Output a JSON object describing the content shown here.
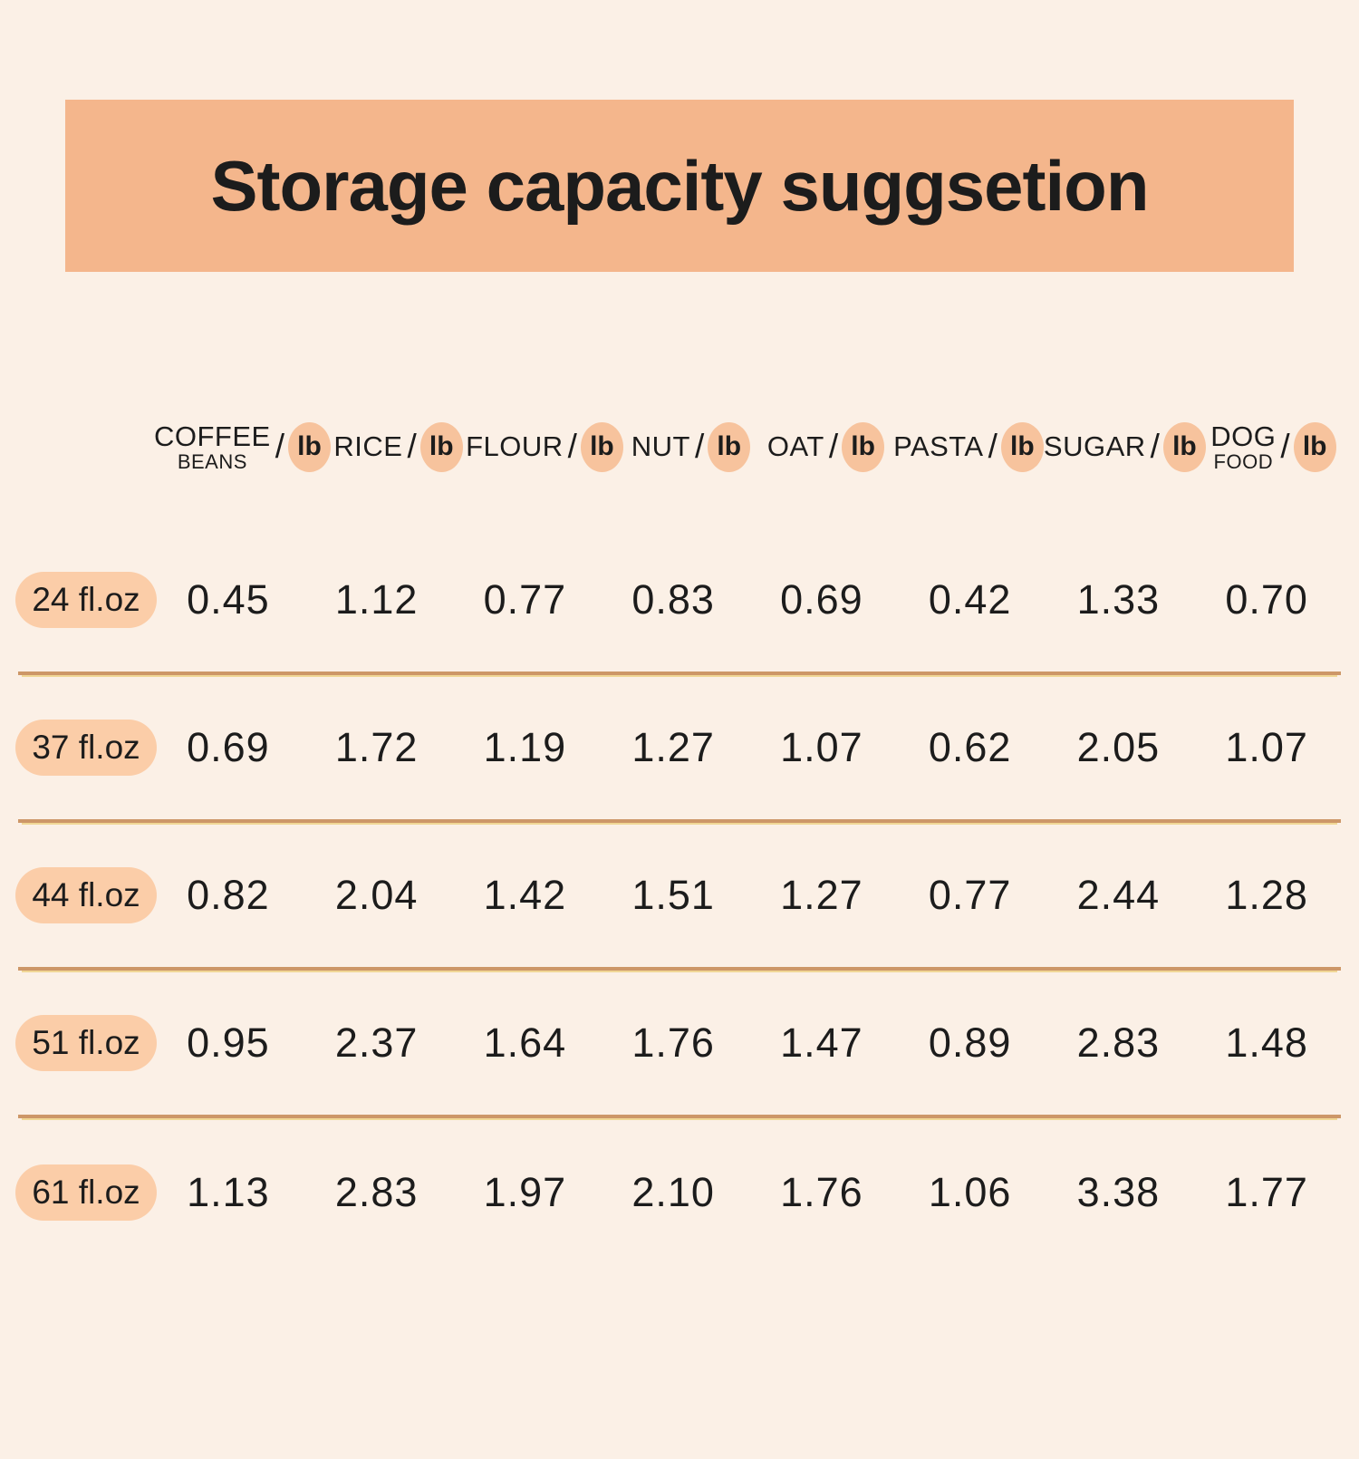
{
  "page": {
    "title": "Storage capacity suggsetion"
  },
  "table": {
    "unit": "lb",
    "separator": "/",
    "columns": [
      {
        "name": "COFFEE",
        "sub": "BEANS"
      },
      {
        "name": "RICE",
        "sub": ""
      },
      {
        "name": "FLOUR",
        "sub": ""
      },
      {
        "name": "NUT",
        "sub": ""
      },
      {
        "name": "OAT",
        "sub": ""
      },
      {
        "name": "PASTA",
        "sub": ""
      },
      {
        "name": "SUGAR",
        "sub": ""
      },
      {
        "name": "DOG",
        "sub": "FOOD"
      }
    ],
    "rows": [
      {
        "size": "24 fl.oz",
        "values": [
          "0.45",
          "1.12",
          "0.77",
          "0.83",
          "0.69",
          "0.42",
          "1.33",
          "0.70"
        ]
      },
      {
        "size": "37 fl.oz",
        "values": [
          "0.69",
          "1.72",
          "1.19",
          "1.27",
          "1.07",
          "0.62",
          "2.05",
          "1.07"
        ]
      },
      {
        "size": "44 fl.oz",
        "values": [
          "0.82",
          "2.04",
          "1.42",
          "1.51",
          "1.27",
          "0.77",
          "2.44",
          "1.28"
        ]
      },
      {
        "size": "51 fl.oz",
        "values": [
          "0.95",
          "2.37",
          "1.64",
          "1.76",
          "1.47",
          "0.89",
          "2.83",
          "1.48"
        ]
      },
      {
        "size": "61 fl.oz",
        "values": [
          "1.13",
          "2.83",
          "1.97",
          "2.10",
          "1.76",
          "1.06",
          "3.38",
          "1.77"
        ]
      }
    ]
  },
  "colors": {
    "background": "#fbf0e6",
    "banner": "#f4b68c",
    "pill": "#fbcda8",
    "unit_oval": "#f7c39d",
    "divider": "#cd9768",
    "divider_glow": "#f0d795",
    "text": "#1c1c1c"
  },
  "chart_data": {
    "type": "table",
    "title": "Storage capacity suggsetion",
    "columns": [
      "COFFEE BEANS/lb",
      "RICE/lb",
      "FLOUR/lb",
      "NUT/lb",
      "OAT/lb",
      "PASTA/lb",
      "SUGAR/lb",
      "DOG FOOD/lb"
    ],
    "row_labels": [
      "24 fl.oz",
      "37 fl.oz",
      "44 fl.oz",
      "51 fl.oz",
      "61 fl.oz"
    ],
    "values": [
      [
        0.45,
        1.12,
        0.77,
        0.83,
        0.69,
        0.42,
        1.33,
        0.7
      ],
      [
        0.69,
        1.72,
        1.19,
        1.27,
        1.07,
        0.62,
        2.05,
        1.07
      ],
      [
        0.82,
        2.04,
        1.42,
        1.51,
        1.27,
        0.77,
        2.44,
        1.28
      ],
      [
        0.95,
        2.37,
        1.64,
        1.76,
        1.47,
        0.89,
        2.83,
        1.48
      ],
      [
        1.13,
        2.83,
        1.97,
        2.1,
        1.76,
        1.06,
        3.38,
        1.77
      ]
    ]
  }
}
